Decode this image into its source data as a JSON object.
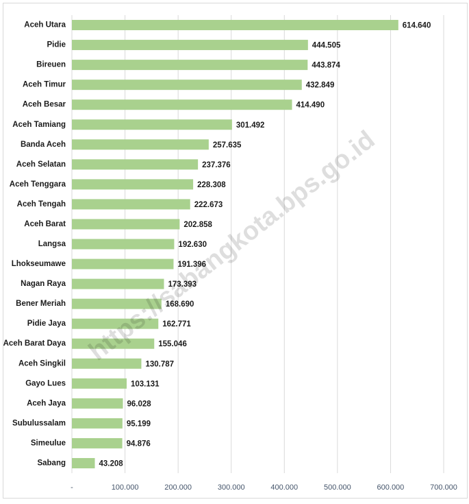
{
  "chart_data": {
    "type": "bar",
    "orientation": "horizontal",
    "watermark": "https://sabangkota.bps.go.id",
    "categories": [
      "Aceh Utara",
      "Pidie",
      "Bireuen",
      "Aceh Timur",
      "Aceh Besar",
      "Aceh Tamiang",
      "Banda Aceh",
      "Aceh Selatan",
      "Aceh Tenggara",
      "Aceh Tengah",
      "Aceh Barat",
      "Langsa",
      "Lhokseumawe",
      "Nagan Raya",
      "Bener Meriah",
      "Pidie Jaya",
      "Aceh Barat Daya",
      "Aceh Singkil",
      "Gayo Lues",
      "Aceh Jaya",
      "Subulussalam",
      "Simeulue",
      "Sabang"
    ],
    "values": [
      614640,
      444505,
      443874,
      432849,
      414490,
      301492,
      257635,
      237376,
      228308,
      222673,
      202858,
      192630,
      191396,
      173393,
      168690,
      162771,
      155046,
      130787,
      103131,
      96028,
      95199,
      94876,
      43208
    ],
    "value_labels": [
      "614.640",
      "444.505",
      "443.874",
      "432.849",
      "414.490",
      "301.492",
      "257.635",
      "237.376",
      "228.308",
      "222.673",
      "202.858",
      "192.630",
      "191.396",
      "173.393",
      "168.690",
      "162.771",
      "155.046",
      "130.787",
      "103.131",
      "96.028",
      "95.199",
      "94.876",
      "43.208"
    ],
    "color": "#a9d18e",
    "xlim": [
      0,
      700000
    ],
    "xticks": [
      {
        "value": 0,
        "label": "-"
      },
      {
        "value": 100000,
        "label": "100.000"
      },
      {
        "value": 200000,
        "label": "200.000"
      },
      {
        "value": 300000,
        "label": "300.000"
      },
      {
        "value": 400000,
        "label": "400.000"
      },
      {
        "value": 500000,
        "label": "500.000"
      },
      {
        "value": 600000,
        "label": "600.000"
      },
      {
        "value": 700000,
        "label": "700.000"
      }
    ],
    "grid": true
  }
}
